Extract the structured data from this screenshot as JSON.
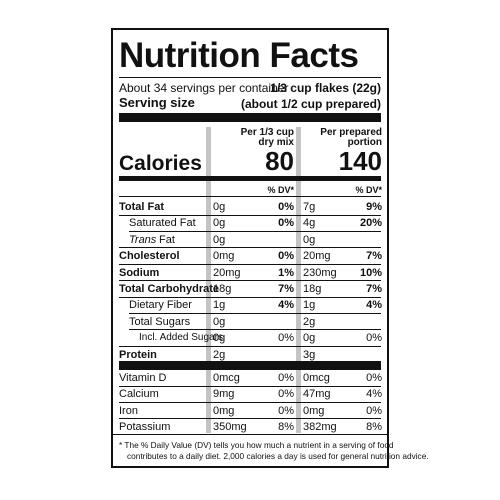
{
  "title": "Nutrition Facts",
  "servings": {
    "per_container": "About 34 servings per container",
    "size_value": "1/3 cup flakes (22g)",
    "size_label": "Serving size",
    "size_prepared": "(about 1/2 cup prepared)"
  },
  "columns": [
    {
      "header": [
        "Per 1/3 cup",
        "dry mix"
      ],
      "calories": 80,
      "dv_header": "% DV*"
    },
    {
      "header": [
        "Per prepared",
        "portion"
      ],
      "calories": 140,
      "dv_header": "% DV*"
    }
  ],
  "calories_label": "Calories",
  "nutrients": [
    {
      "name": "Total Fat",
      "bold": true,
      "indent": 0,
      "amount": [
        "0g",
        "7g"
      ],
      "dv": [
        "0%",
        "9%"
      ]
    },
    {
      "name": "Saturated Fat",
      "bold": false,
      "indent": 1,
      "amount": [
        "0g",
        "4g"
      ],
      "dv": [
        "0%",
        "20%"
      ]
    },
    {
      "name_italic": "Trans",
      "name": "Fat",
      "bold": false,
      "indent": 1,
      "amount": [
        "0g",
        "0g"
      ],
      "dv": [
        null,
        null
      ]
    },
    {
      "name": "Cholesterol",
      "bold": true,
      "indent": 0,
      "amount": [
        "0mg",
        "20mg"
      ],
      "dv": [
        "0%",
        "7%"
      ]
    },
    {
      "name": "Sodium",
      "bold": true,
      "indent": 0,
      "amount": [
        "20mg",
        "230mg"
      ],
      "dv": [
        "1%",
        "10%"
      ]
    },
    {
      "name": "Total Carbohydrate",
      "bold": true,
      "indent": 0,
      "amount": [
        "18g",
        "18g"
      ],
      "dv": [
        "7%",
        "7%"
      ]
    },
    {
      "name": "Dietary Fiber",
      "bold": false,
      "indent": 1,
      "amount": [
        "1g",
        "1g"
      ],
      "dv": [
        "4%",
        "4%"
      ]
    },
    {
      "name": "Total Sugars",
      "bold": false,
      "indent": 1,
      "amount": [
        "0g",
        "2g"
      ],
      "dv": [
        null,
        null
      ]
    },
    {
      "name": "Incl. Added Sugars",
      "bold": false,
      "indent": 2,
      "amount": [
        "0g",
        "0g"
      ],
      "dv": [
        "0%",
        "0%"
      ]
    },
    {
      "name": "Protein",
      "bold": true,
      "indent": 0,
      "amount": [
        "2g",
        "3g"
      ],
      "dv": [
        null,
        null
      ]
    }
  ],
  "micronutrients": [
    {
      "name": "Vitamin D",
      "amount": [
        "0mcg",
        "0mcg"
      ],
      "dv": [
        "0%",
        "0%"
      ]
    },
    {
      "name": "Calcium",
      "amount": [
        "9mg",
        "47mg"
      ],
      "dv": [
        "0%",
        "4%"
      ]
    },
    {
      "name": "Iron",
      "amount": [
        "0mg",
        "0mg"
      ],
      "dv": [
        "0%",
        "0%"
      ]
    },
    {
      "name": "Potassium",
      "amount": [
        "350mg",
        "382mg"
      ],
      "dv": [
        "8%",
        "8%"
      ]
    }
  ],
  "footnote": [
    "* The % Daily Value (DV) tells you how much a nutrient in a serving of food",
    "contributes to a daily diet. 2,000 calories a day is used for general nutrition advice."
  ]
}
